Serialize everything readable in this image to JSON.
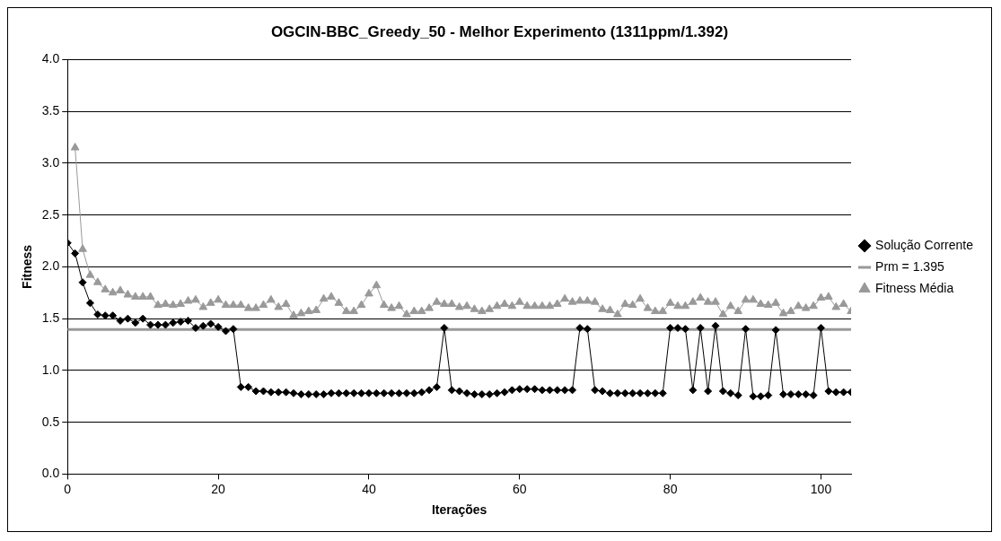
{
  "chart_data": {
    "type": "line",
    "title": "OGCIN-BBC_Greedy_50 - Melhor Experimento (1311ppm/1.392)",
    "xlabel": "Iterações",
    "ylabel": "Fitness",
    "x": [
      0,
      1,
      2,
      3,
      4,
      5,
      6,
      7,
      8,
      9,
      10,
      11,
      12,
      13,
      14,
      15,
      16,
      17,
      18,
      19,
      20,
      21,
      22,
      23,
      24,
      25,
      26,
      27,
      28,
      29,
      30,
      31,
      32,
      33,
      34,
      35,
      36,
      37,
      38,
      39,
      40,
      41,
      42,
      43,
      44,
      45,
      46,
      47,
      48,
      49,
      50,
      51,
      52,
      53,
      54,
      55,
      56,
      57,
      58,
      59,
      60,
      61,
      62,
      63,
      64,
      65,
      66,
      67,
      68,
      69,
      70,
      71,
      72,
      73,
      74,
      75,
      76,
      77,
      78,
      79,
      80,
      81,
      82,
      83,
      84,
      85,
      86,
      87,
      88,
      89,
      90,
      91,
      92,
      93,
      94,
      95,
      96,
      97,
      98,
      99,
      100,
      101,
      102,
      103,
      104
    ],
    "series": [
      {
        "name": "Solução Corrente",
        "color": "#000000",
        "marker": "diamond",
        "values": [
          2.23,
          2.13,
          1.85,
          1.65,
          1.54,
          1.53,
          1.53,
          1.48,
          1.5,
          1.46,
          1.5,
          1.44,
          1.44,
          1.44,
          1.46,
          1.47,
          1.48,
          1.41,
          1.43,
          1.45,
          1.42,
          1.38,
          1.4,
          0.84,
          0.84,
          0.8,
          0.8,
          0.79,
          0.79,
          0.79,
          0.78,
          0.77,
          0.77,
          0.77,
          0.77,
          0.78,
          0.78,
          0.78,
          0.78,
          0.78,
          0.78,
          0.78,
          0.78,
          0.78,
          0.78,
          0.78,
          0.78,
          0.79,
          0.81,
          0.84,
          1.41,
          0.81,
          0.8,
          0.78,
          0.77,
          0.77,
          0.77,
          0.78,
          0.79,
          0.81,
          0.82,
          0.82,
          0.82,
          0.81,
          0.81,
          0.81,
          0.81,
          0.81,
          1.41,
          1.4,
          0.81,
          0.8,
          0.78,
          0.78,
          0.78,
          0.78,
          0.78,
          0.78,
          0.78,
          0.78,
          1.41,
          1.41,
          1.4,
          0.81,
          1.41,
          0.8,
          1.43,
          0.8,
          0.78,
          0.76,
          1.4,
          0.75,
          0.75,
          0.76,
          1.39,
          0.77,
          0.77,
          0.77,
          0.77,
          0.76,
          1.41,
          0.8,
          0.79,
          0.79,
          0.79
        ]
      },
      {
        "name": "Fitness Média",
        "color": "#999999",
        "marker": "triangle",
        "values": [
          null,
          3.15,
          2.17,
          1.92,
          1.85,
          1.78,
          1.75,
          1.77,
          1.73,
          1.71,
          1.71,
          1.71,
          1.63,
          1.64,
          1.63,
          1.64,
          1.67,
          1.68,
          1.61,
          1.65,
          1.68,
          1.63,
          1.63,
          1.63,
          1.6,
          1.6,
          1.63,
          1.68,
          1.61,
          1.64,
          1.53,
          1.55,
          1.57,
          1.58,
          1.69,
          1.71,
          1.65,
          1.57,
          1.57,
          1.63,
          1.74,
          1.82,
          1.63,
          1.6,
          1.62,
          1.54,
          1.57,
          1.57,
          1.6,
          1.66,
          1.64,
          1.64,
          1.61,
          1.62,
          1.59,
          1.57,
          1.59,
          1.62,
          1.64,
          1.62,
          1.66,
          1.62,
          1.62,
          1.62,
          1.62,
          1.64,
          1.69,
          1.66,
          1.67,
          1.67,
          1.66,
          1.59,
          1.58,
          1.54,
          1.64,
          1.63,
          1.69,
          1.6,
          1.57,
          1.57,
          1.65,
          1.62,
          1.62,
          1.66,
          1.7,
          1.66,
          1.66,
          1.54,
          1.62,
          1.57,
          1.68,
          1.68,
          1.64,
          1.63,
          1.65,
          1.55,
          1.57,
          1.62,
          1.6,
          1.62,
          1.7,
          1.71,
          1.61,
          1.64,
          1.57
        ]
      }
    ],
    "ref_lines": [
      {
        "axis": "y",
        "value": 1.395,
        "label": "Prm = 1.395",
        "color": "#999999"
      }
    ],
    "xlim": [
      0,
      104
    ],
    "xticks": [
      0,
      20,
      40,
      60,
      80,
      100
    ],
    "ylim": [
      0,
      4
    ],
    "yticks": [
      {
        "value": 0,
        "label": "0.0"
      },
      {
        "value": 0.5,
        "label": "0.5"
      },
      {
        "value": 1,
        "label": "1.0"
      },
      {
        "value": 1.5,
        "label": "1.5"
      },
      {
        "value": 2,
        "label": "2.0"
      },
      {
        "value": 2.5,
        "label": "2.5"
      },
      {
        "value": 3,
        "label": "3.0"
      },
      {
        "value": 3.5,
        "label": "3.5"
      },
      {
        "value": 4,
        "label": "4.0"
      }
    ],
    "grid": "y",
    "legend": "right"
  }
}
